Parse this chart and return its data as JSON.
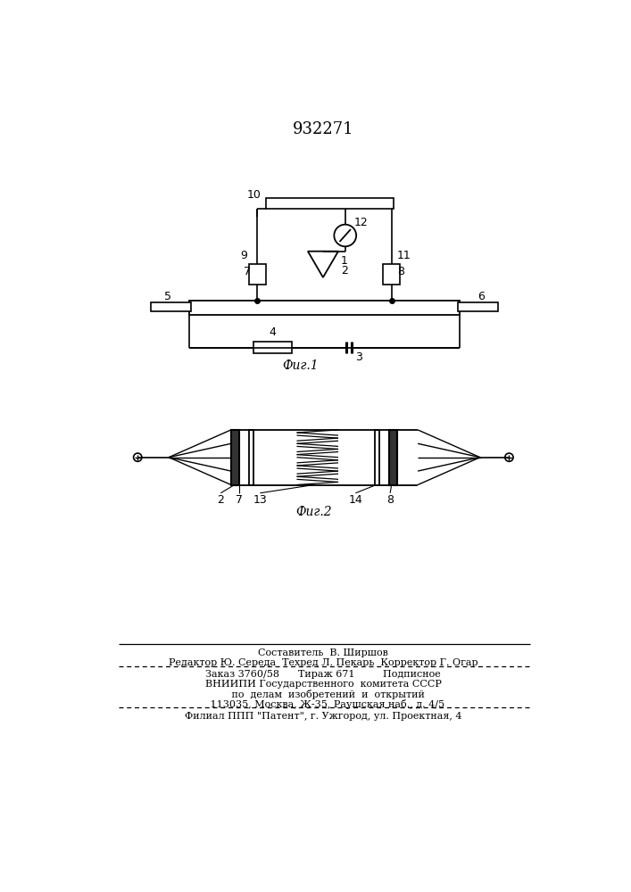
{
  "title": "932271",
  "title_fontsize": 13,
  "fig1_label": "Фиг.1",
  "fig2_label": "Фиг.2",
  "bg_color": "#ffffff",
  "line_color": "#000000",
  "text_color": "#000000",
  "footer_lines": [
    "Составитель  В. Ширшов",
    "Редактор Ю. Середа  Техред Л. Пекарь  Корректор Г. Огар",
    "Заказ 3760/58      Тираж 671         Подписное",
    "ВНИИПИ Государственного  комитета СССР",
    "   по  делам  изобретений  и  открытий",
    "   113035, Москва, Ж-35, Раушская наб., д. 4/5",
    "Филиал ППП \"Патент\", г. Ужгород, ул. Проектная, 4"
  ]
}
